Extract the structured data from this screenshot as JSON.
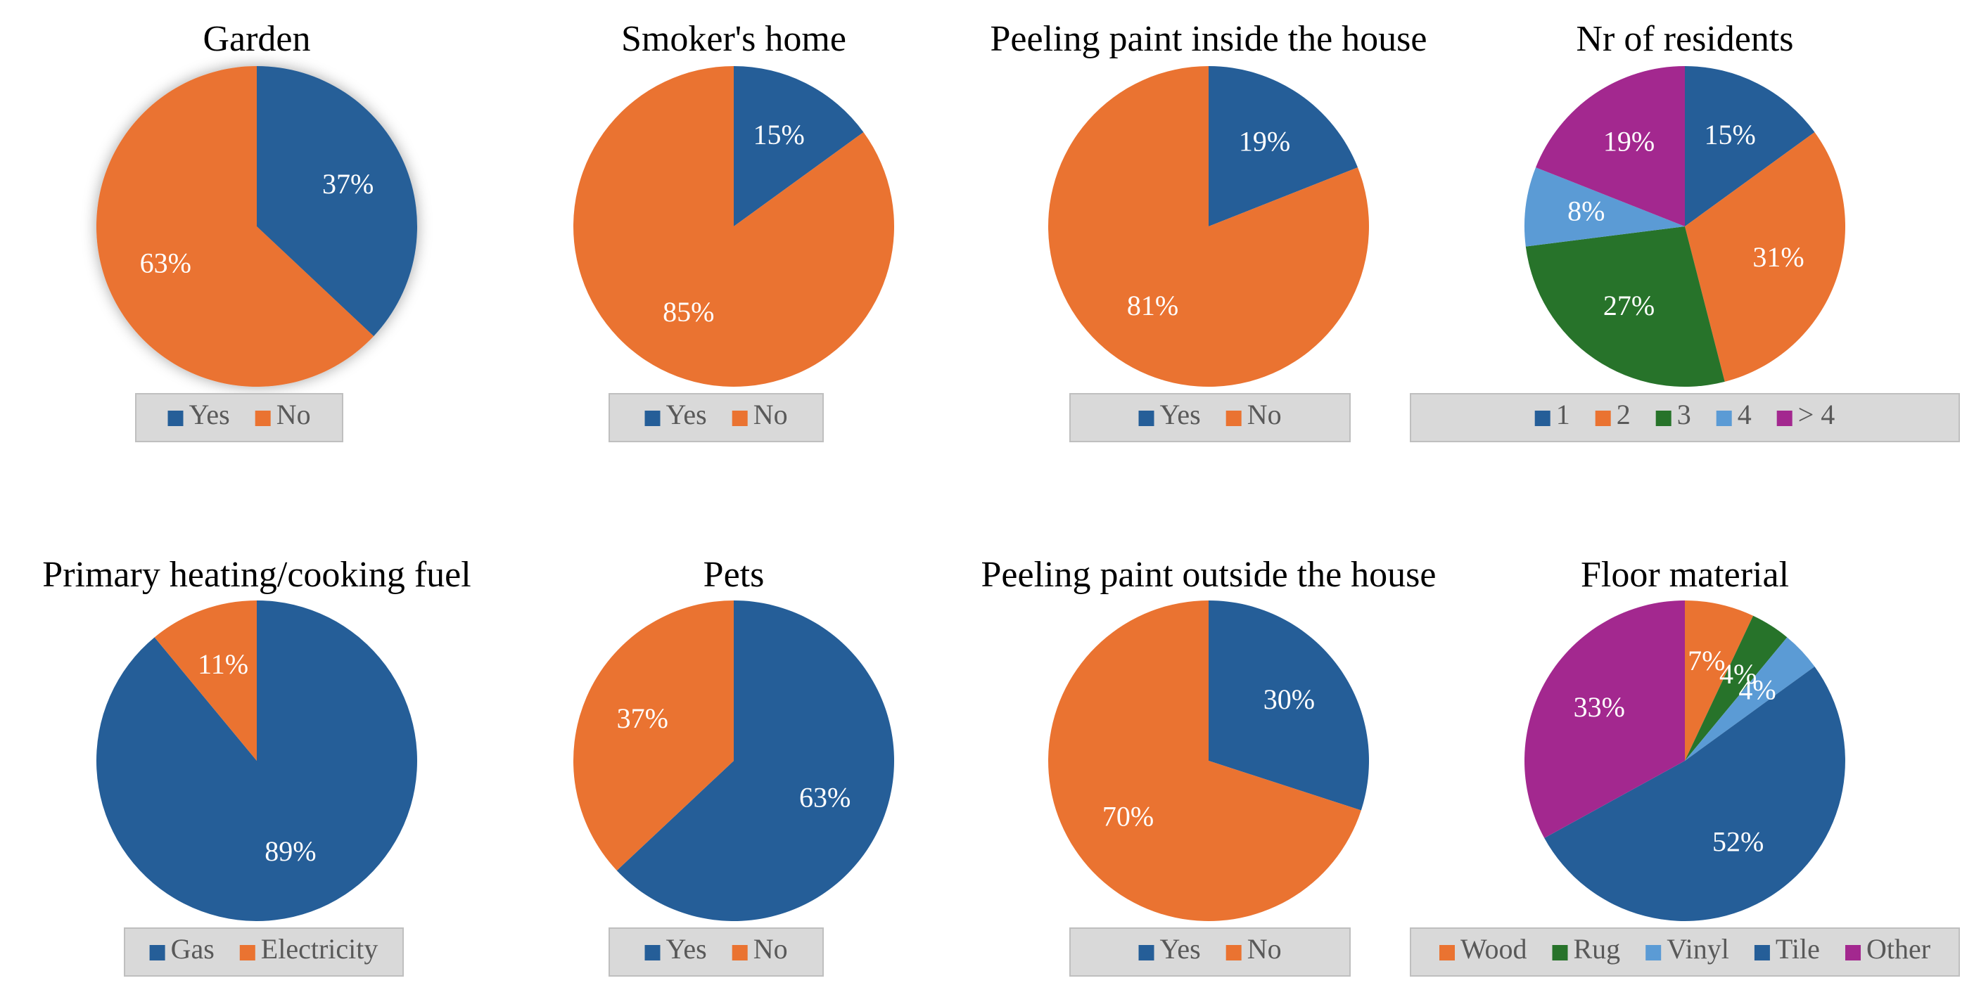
{
  "colors": {
    "blue": "#255e98",
    "orange": "#ea7331",
    "green": "#27732a",
    "light_blue": "#5b9bd5",
    "purple": "#a3288f"
  },
  "chart_data": [
    {
      "type": "pie",
      "title": "Garden",
      "categories": [
        "Yes",
        "No"
      ],
      "values": [
        37,
        63
      ],
      "labels": [
        "37%",
        "63%"
      ],
      "colors": [
        "#255e98",
        "#ea7331"
      ],
      "legend": "bottom"
    },
    {
      "type": "pie",
      "title": "Smoker's home",
      "categories": [
        "Yes",
        "No"
      ],
      "values": [
        15,
        85
      ],
      "labels": [
        "15%",
        "85%"
      ],
      "colors": [
        "#255e98",
        "#ea7331"
      ],
      "legend": "bottom"
    },
    {
      "type": "pie",
      "title": "Peeling paint inside the house",
      "categories": [
        "Yes",
        "No"
      ],
      "values": [
        19,
        81
      ],
      "labels": [
        "19%",
        "81%"
      ],
      "colors": [
        "#255e98",
        "#ea7331"
      ],
      "legend": "bottom"
    },
    {
      "type": "pie",
      "title": "Nr of residents",
      "categories": [
        "1",
        "2",
        "3",
        "4",
        "> 4"
      ],
      "values": [
        15,
        31,
        27,
        8,
        19
      ],
      "labels": [
        "15%",
        "31%",
        "27%",
        "8%",
        "19%"
      ],
      "colors": [
        "#255e98",
        "#ea7331",
        "#27732a",
        "#5b9bd5",
        "#a3288f"
      ],
      "legend": "bottom"
    },
    {
      "type": "pie",
      "title": "Primary heating/cooking fuel",
      "categories": [
        "Gas",
        "Electricity"
      ],
      "values": [
        89,
        11
      ],
      "labels": [
        "89%",
        "11%"
      ],
      "colors": [
        "#255e98",
        "#ea7331"
      ],
      "legend": "bottom"
    },
    {
      "type": "pie",
      "title": "Pets",
      "categories": [
        "Yes",
        "No"
      ],
      "values": [
        63,
        37
      ],
      "labels": [
        "63%",
        "37%"
      ],
      "colors": [
        "#255e98",
        "#ea7331"
      ],
      "legend": "bottom"
    },
    {
      "type": "pie",
      "title": "Peeling paint outside the house",
      "categories": [
        "Yes",
        "No"
      ],
      "values": [
        30,
        70
      ],
      "labels": [
        "30%",
        "70%"
      ],
      "colors": [
        "#255e98",
        "#ea7331"
      ],
      "legend": "bottom"
    },
    {
      "type": "pie",
      "title": "Floor material",
      "categories": [
        "Wood",
        "Rug",
        "Vinyl",
        "Tile",
        "Other"
      ],
      "values": [
        7,
        4,
        4,
        52,
        33
      ],
      "labels": [
        "7%",
        "4%",
        "4%",
        "52%",
        "33%"
      ],
      "colors": [
        "#ea7331",
        "#27732a",
        "#5b9bd5",
        "#255e98",
        "#a3288f"
      ],
      "legend": "bottom"
    }
  ]
}
